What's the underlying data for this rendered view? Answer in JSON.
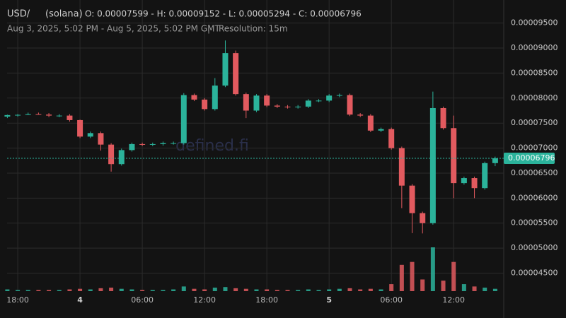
{
  "chart_data": {
    "type": "candlestick",
    "pair": "USD/",
    "token": "(solana)",
    "ohlc_text": "O: 0.00007599 - H: 0.00009152 - L: 0.00005294 - C: 0.00006796",
    "range_text": "Aug 3, 2025, 5:02 PM - Aug 5, 2025, 5:02 PM GMT",
    "separator": "|",
    "resolution_text": "Resolution: 15m",
    "watermark": "defined.fi",
    "categories": [
      null,
      "18:00",
      null,
      null,
      null,
      null,
      null,
      "4",
      null,
      null,
      null,
      null,
      null,
      "06:00",
      null,
      null,
      null,
      null,
      null,
      "12:00",
      null,
      null,
      null,
      null,
      null,
      "18:00",
      null,
      null,
      null,
      null,
      null,
      "5",
      null,
      null,
      null,
      null,
      null,
      "06:00",
      null,
      null,
      null,
      null,
      null,
      "12:00",
      null,
      null,
      null,
      null
    ],
    "open": [
      7.63e-05,
      7.66e-05,
      7.665e-05,
      7.68e-05,
      7.67e-05,
      7.65e-05,
      7.65e-05,
      7.56e-05,
      7.23e-05,
      7.3e-05,
      7.07e-05,
      6.68e-05,
      6.96e-05,
      7.08e-05,
      7.07e-05,
      7.08e-05,
      7.1e-05,
      7.1e-05,
      8.06e-05,
      7.97e-05,
      7.78e-05,
      8.25e-05,
      8.9e-05,
      8.08e-05,
      7.75e-05,
      8.05e-05,
      7.85e-05,
      7.83e-05,
      7.82e-05,
      7.83e-05,
      7.95e-05,
      7.95e-05,
      8.05e-05,
      8.06e-05,
      7.67e-05,
      7.65e-05,
      7.35e-05,
      7.38e-05,
      7e-05,
      6.25e-05,
      5.7e-05,
      5.5e-05,
      7.8e-05,
      7.4e-05,
      6.3e-05,
      6.4e-05,
      6.2e-05,
      6.7e-05
    ],
    "high": [
      7.67e-05,
      7.68e-05,
      7.71e-05,
      7.71e-05,
      7.7e-05,
      7.68e-05,
      7.68e-05,
      7.57e-05,
      7.33e-05,
      7.33e-05,
      7.1e-05,
      6.99e-05,
      7.11e-05,
      7.11e-05,
      7.11e-05,
      7.13e-05,
      7.13e-05,
      8.1e-05,
      8.09e-05,
      8e-05,
      8.4e-05,
      9.152e-05,
      8.95e-05,
      8.11e-05,
      8.08e-05,
      8.08e-05,
      7.88e-05,
      7.86e-05,
      7.86e-05,
      7.98e-05,
      7.98e-05,
      8.08e-05,
      8.09e-05,
      8.09e-05,
      7.7e-05,
      7.68e-05,
      7.41e-05,
      7.41e-05,
      7.03e-05,
      6.28e-05,
      5.73e-05,
      8.13e-05,
      7.83e-05,
      7.65e-05,
      6.43e-05,
      6.43e-05,
      6.73e-05,
      6.83e-05
    ],
    "low": [
      7.6e-05,
      7.63e-05,
      7.66e-05,
      7.67e-05,
      7.62e-05,
      7.62e-05,
      7.53e-05,
      7.2e-05,
      7.2e-05,
      6.95e-05,
      6.53e-05,
      6.65e-05,
      6.93e-05,
      7.04e-05,
      7.04e-05,
      7.05e-05,
      7.07e-05,
      7.07e-05,
      7.94e-05,
      7.75e-05,
      7.75e-05,
      8.22e-05,
      8.05e-05,
      7.6e-05,
      7.72e-05,
      7.82e-05,
      7.8e-05,
      7.79e-05,
      7.79e-05,
      7.8e-05,
      7.92e-05,
      7.92e-05,
      8.02e-05,
      7.64e-05,
      7.62e-05,
      7.32e-05,
      7.32e-05,
      6.97e-05,
      5.8e-05,
      5.3e-05,
      5.294e-05,
      5.47e-05,
      7.37e-05,
      6e-05,
      6.27e-05,
      6e-05,
      6.17e-05,
      6.64e-05
    ],
    "close": [
      7.66e-05,
      7.665e-05,
      7.68e-05,
      7.67e-05,
      7.65e-05,
      7.65e-05,
      7.56e-05,
      7.23e-05,
      7.3e-05,
      7.07e-05,
      6.68e-05,
      6.96e-05,
      7.08e-05,
      7.07e-05,
      7.08e-05,
      7.1e-05,
      7.1e-05,
      8.06e-05,
      7.97e-05,
      7.78e-05,
      8.25e-05,
      8.9e-05,
      8.08e-05,
      7.75e-05,
      8.05e-05,
      7.85e-05,
      7.83e-05,
      7.82e-05,
      7.83e-05,
      7.95e-05,
      7.95e-05,
      8.05e-05,
      8.06e-05,
      7.67e-05,
      7.65e-05,
      7.35e-05,
      7.38e-05,
      7e-05,
      6.25e-05,
      5.7e-05,
      5.5e-05,
      7.8e-05,
      7.4e-05,
      6.3e-05,
      6.4e-05,
      6.2e-05,
      6.7e-05,
      6.796e-05
    ],
    "volume": [
      3,
      2,
      2,
      2,
      2,
      2,
      3,
      4,
      3,
      5,
      6,
      4,
      3,
      2,
      2,
      2,
      3,
      8,
      4,
      3,
      6,
      7,
      5,
      4,
      3,
      3,
      2,
      2,
      2,
      3,
      2,
      3,
      4,
      5,
      3,
      4,
      3,
      12,
      45,
      50,
      20,
      75,
      18,
      50,
      12,
      8,
      6,
      4
    ],
    "up_color": "#2bb39b",
    "down_color": "#e25a5f",
    "last_price": {
      "value": 6.796e-05,
      "label": "0.00006796"
    },
    "ylim": [
      4.14e-05,
      9.82e-05
    ],
    "yticks": [
      {
        "value": 4.5e-05,
        "label": "0.00004500"
      },
      {
        "value": 5e-05,
        "label": "0.00005000"
      },
      {
        "value": 5.5e-05,
        "label": "0.00005500"
      },
      {
        "value": 6e-05,
        "label": "0.00006000"
      },
      {
        "value": 6.5e-05,
        "label": "0.00006500"
      },
      {
        "value": 7e-05,
        "label": "0.00007000"
      },
      {
        "value": 7.5e-05,
        "label": "0.00007500"
      },
      {
        "value": 8e-05,
        "label": "0.00008000"
      },
      {
        "value": 8.5e-05,
        "label": "0.00008500"
      },
      {
        "value": 9e-05,
        "label": "0.00009000"
      },
      {
        "value": 9.5e-05,
        "label": "0.00009500"
      }
    ],
    "grid": true
  }
}
